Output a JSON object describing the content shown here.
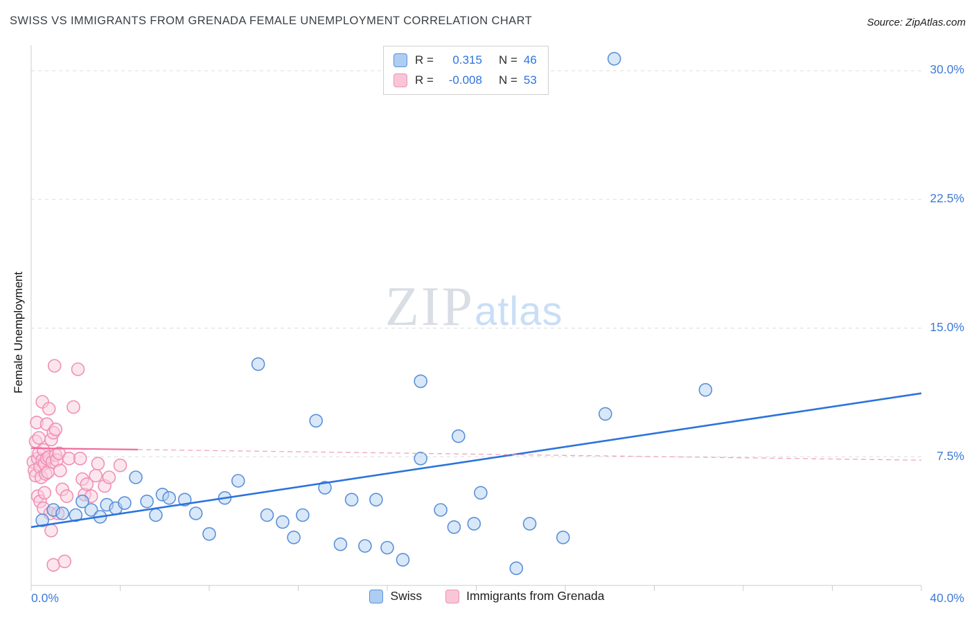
{
  "header": {
    "title": "SWISS VS IMMIGRANTS FROM GRENADA FEMALE UNEMPLOYMENT CORRELATION CHART",
    "source": "Source: ZipAtlas.com"
  },
  "watermark": {
    "zip": "ZIP",
    "atlas": "atlas"
  },
  "stats_legend": {
    "rows": [
      {
        "series": "Swiss",
        "r_label": "R =",
        "r_value": "0.315",
        "n_label": "N =",
        "n_value": "46"
      },
      {
        "series": "Immigrants from Grenada",
        "r_label": "R =",
        "r_value": "-0.008",
        "n_label": "N =",
        "n_value": "53"
      }
    ]
  },
  "bottom_legend": {
    "items": [
      {
        "label": "Swiss",
        "color": "#aecdf2",
        "border": "#5b8fd9"
      },
      {
        "label": "Immigrants from Grenada",
        "color": "#f9c6d8",
        "border": "#f090b4"
      }
    ]
  },
  "axes": {
    "y_label": "Female Unemployment",
    "x_min_label": "0.0%",
    "x_max_label": "40.0%",
    "y_tick_labels": [
      "30.0%",
      "22.5%",
      "15.0%",
      "7.5%"
    ]
  },
  "chart_data": {
    "type": "scatter",
    "title": "SWISS VS IMMIGRANTS FROM GRENADA FEMALE UNEMPLOYMENT CORRELATION CHART",
    "xlabel": "",
    "ylabel": "Female Unemployment",
    "x_range": [
      0,
      40
    ],
    "y_range": [
      0,
      31.5
    ],
    "gridlines_y": [
      7.5,
      15,
      22.5,
      30
    ],
    "x_tick_step": 4,
    "grid": true,
    "legend_position": "bottom",
    "series": [
      {
        "name": "Swiss",
        "fill": "#b3d1f2",
        "stroke": "#5b8fd9",
        "r": 0.315,
        "n": 46,
        "points": [
          [
            0.5,
            3.8
          ],
          [
            1.0,
            4.4
          ],
          [
            1.4,
            4.2
          ],
          [
            2.0,
            4.1
          ],
          [
            2.3,
            4.9
          ],
          [
            2.7,
            4.4
          ],
          [
            3.1,
            4.0
          ],
          [
            3.4,
            4.7
          ],
          [
            3.8,
            4.5
          ],
          [
            4.2,
            4.8
          ],
          [
            4.7,
            6.3
          ],
          [
            5.2,
            4.9
          ],
          [
            5.6,
            4.1
          ],
          [
            5.9,
            5.3
          ],
          [
            6.2,
            5.1
          ],
          [
            6.9,
            5.0
          ],
          [
            7.4,
            4.2
          ],
          [
            8.0,
            3.0
          ],
          [
            8.7,
            5.1
          ],
          [
            9.3,
            6.1
          ],
          [
            10.2,
            12.9
          ],
          [
            10.6,
            4.1
          ],
          [
            11.3,
            3.7
          ],
          [
            11.8,
            2.8
          ],
          [
            12.2,
            4.1
          ],
          [
            12.8,
            9.6
          ],
          [
            13.2,
            5.7
          ],
          [
            13.9,
            2.4
          ],
          [
            14.4,
            5.0
          ],
          [
            15.0,
            2.3
          ],
          [
            15.5,
            5.0
          ],
          [
            16.0,
            2.2
          ],
          [
            16.7,
            1.5
          ],
          [
            17.5,
            7.4
          ],
          [
            17.5,
            11.9
          ],
          [
            18.4,
            4.4
          ],
          [
            19.0,
            3.4
          ],
          [
            19.2,
            8.7
          ],
          [
            19.9,
            3.6
          ],
          [
            20.2,
            5.4
          ],
          [
            21.8,
            1.0
          ],
          [
            22.4,
            3.6
          ],
          [
            23.9,
            2.8
          ],
          [
            25.8,
            10.0
          ],
          [
            26.2,
            30.7
          ],
          [
            30.3,
            11.4
          ]
        ]
      },
      {
        "name": "Immigrants from Grenada",
        "fill": "#facdde",
        "stroke": "#f090b4",
        "r": -0.008,
        "n": 53,
        "points": [
          [
            0.1,
            7.2
          ],
          [
            0.15,
            6.7
          ],
          [
            0.2,
            8.4
          ],
          [
            0.2,
            6.4
          ],
          [
            0.25,
            9.5
          ],
          [
            0.3,
            7.4
          ],
          [
            0.3,
            5.2
          ],
          [
            0.35,
            8.6
          ],
          [
            0.35,
            7.7
          ],
          [
            0.4,
            6.9
          ],
          [
            0.4,
            4.9
          ],
          [
            0.45,
            6.3
          ],
          [
            0.5,
            10.7
          ],
          [
            0.5,
            7.3
          ],
          [
            0.55,
            7.9
          ],
          [
            0.55,
            4.5
          ],
          [
            0.6,
            7.1
          ],
          [
            0.6,
            5.4
          ],
          [
            0.65,
            6.5
          ],
          [
            0.7,
            9.4
          ],
          [
            0.7,
            7.4
          ],
          [
            0.75,
            6.6
          ],
          [
            0.8,
            10.3
          ],
          [
            0.8,
            7.5
          ],
          [
            0.85,
            4.2
          ],
          [
            0.9,
            8.5
          ],
          [
            0.9,
            3.2
          ],
          [
            0.95,
            7.2
          ],
          [
            1.0,
            8.9
          ],
          [
            1.0,
            1.2
          ],
          [
            1.05,
            12.8
          ],
          [
            1.1,
            9.1
          ],
          [
            1.1,
            7.6
          ],
          [
            1.15,
            7.3
          ],
          [
            1.2,
            4.2
          ],
          [
            1.25,
            7.7
          ],
          [
            1.3,
            6.7
          ],
          [
            1.4,
            5.6
          ],
          [
            1.5,
            1.4
          ],
          [
            1.6,
            5.2
          ],
          [
            1.7,
            7.4
          ],
          [
            1.9,
            10.4
          ],
          [
            2.1,
            12.6
          ],
          [
            2.2,
            7.4
          ],
          [
            2.3,
            6.2
          ],
          [
            2.4,
            5.3
          ],
          [
            2.5,
            5.9
          ],
          [
            2.7,
            5.2
          ],
          [
            2.9,
            6.4
          ],
          [
            3.0,
            7.1
          ],
          [
            3.3,
            5.8
          ],
          [
            3.5,
            6.3
          ],
          [
            4.0,
            7.0
          ]
        ]
      }
    ],
    "trend_lines": [
      {
        "name": "swiss-trend",
        "color": "#2b73dd",
        "style": "solid",
        "width": 2.6,
        "x1": 0,
        "y1": 3.4,
        "x2": 40,
        "y2": 11.2
      },
      {
        "name": "grenada-trend-solid",
        "color": "#ef6a9b",
        "style": "solid",
        "width": 2.2,
        "x1": 0,
        "y1": 8.0,
        "x2": 4.8,
        "y2": 7.92
      },
      {
        "name": "grenada-trend-dashed",
        "color": "#f0a3bf",
        "style": "dashed",
        "width": 1.3,
        "x1": 4.8,
        "y1": 7.92,
        "x2": 40,
        "y2": 7.3
      }
    ]
  }
}
